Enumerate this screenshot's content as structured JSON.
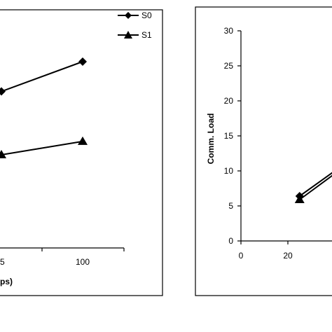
{
  "chart_data": [
    {
      "type": "line",
      "title": "",
      "xlabel": "ps)",
      "ylabel": "",
      "x_tick_labels": [
        "5",
        "100"
      ],
      "series": [
        {
          "name": "S0",
          "marker": "diamond",
          "x": [
            25,
            100
          ],
          "y": [
            21,
            25
          ]
        },
        {
          "name": "S1",
          "marker": "triangle",
          "x": [
            25,
            100
          ],
          "y": [
            12.5,
            14.3
          ]
        }
      ],
      "legend": "top-right",
      "grid": false
    },
    {
      "type": "line",
      "title": "",
      "xlabel": "",
      "ylabel": "Comm. Load",
      "xlim": [
        0,
        40
      ],
      "ylim": [
        0,
        30
      ],
      "x_ticks": [
        0,
        20
      ],
      "y_ticks": [
        0,
        5,
        10,
        15,
        20,
        25,
        30
      ],
      "series": [
        {
          "marker": "diamond",
          "x": [
            25,
            40
          ],
          "y": [
            6.4,
            10.0
          ]
        },
        {
          "marker": "triangle",
          "x": [
            25,
            40
          ],
          "y": [
            5.9,
            9.6
          ]
        }
      ],
      "grid": false
    }
  ]
}
